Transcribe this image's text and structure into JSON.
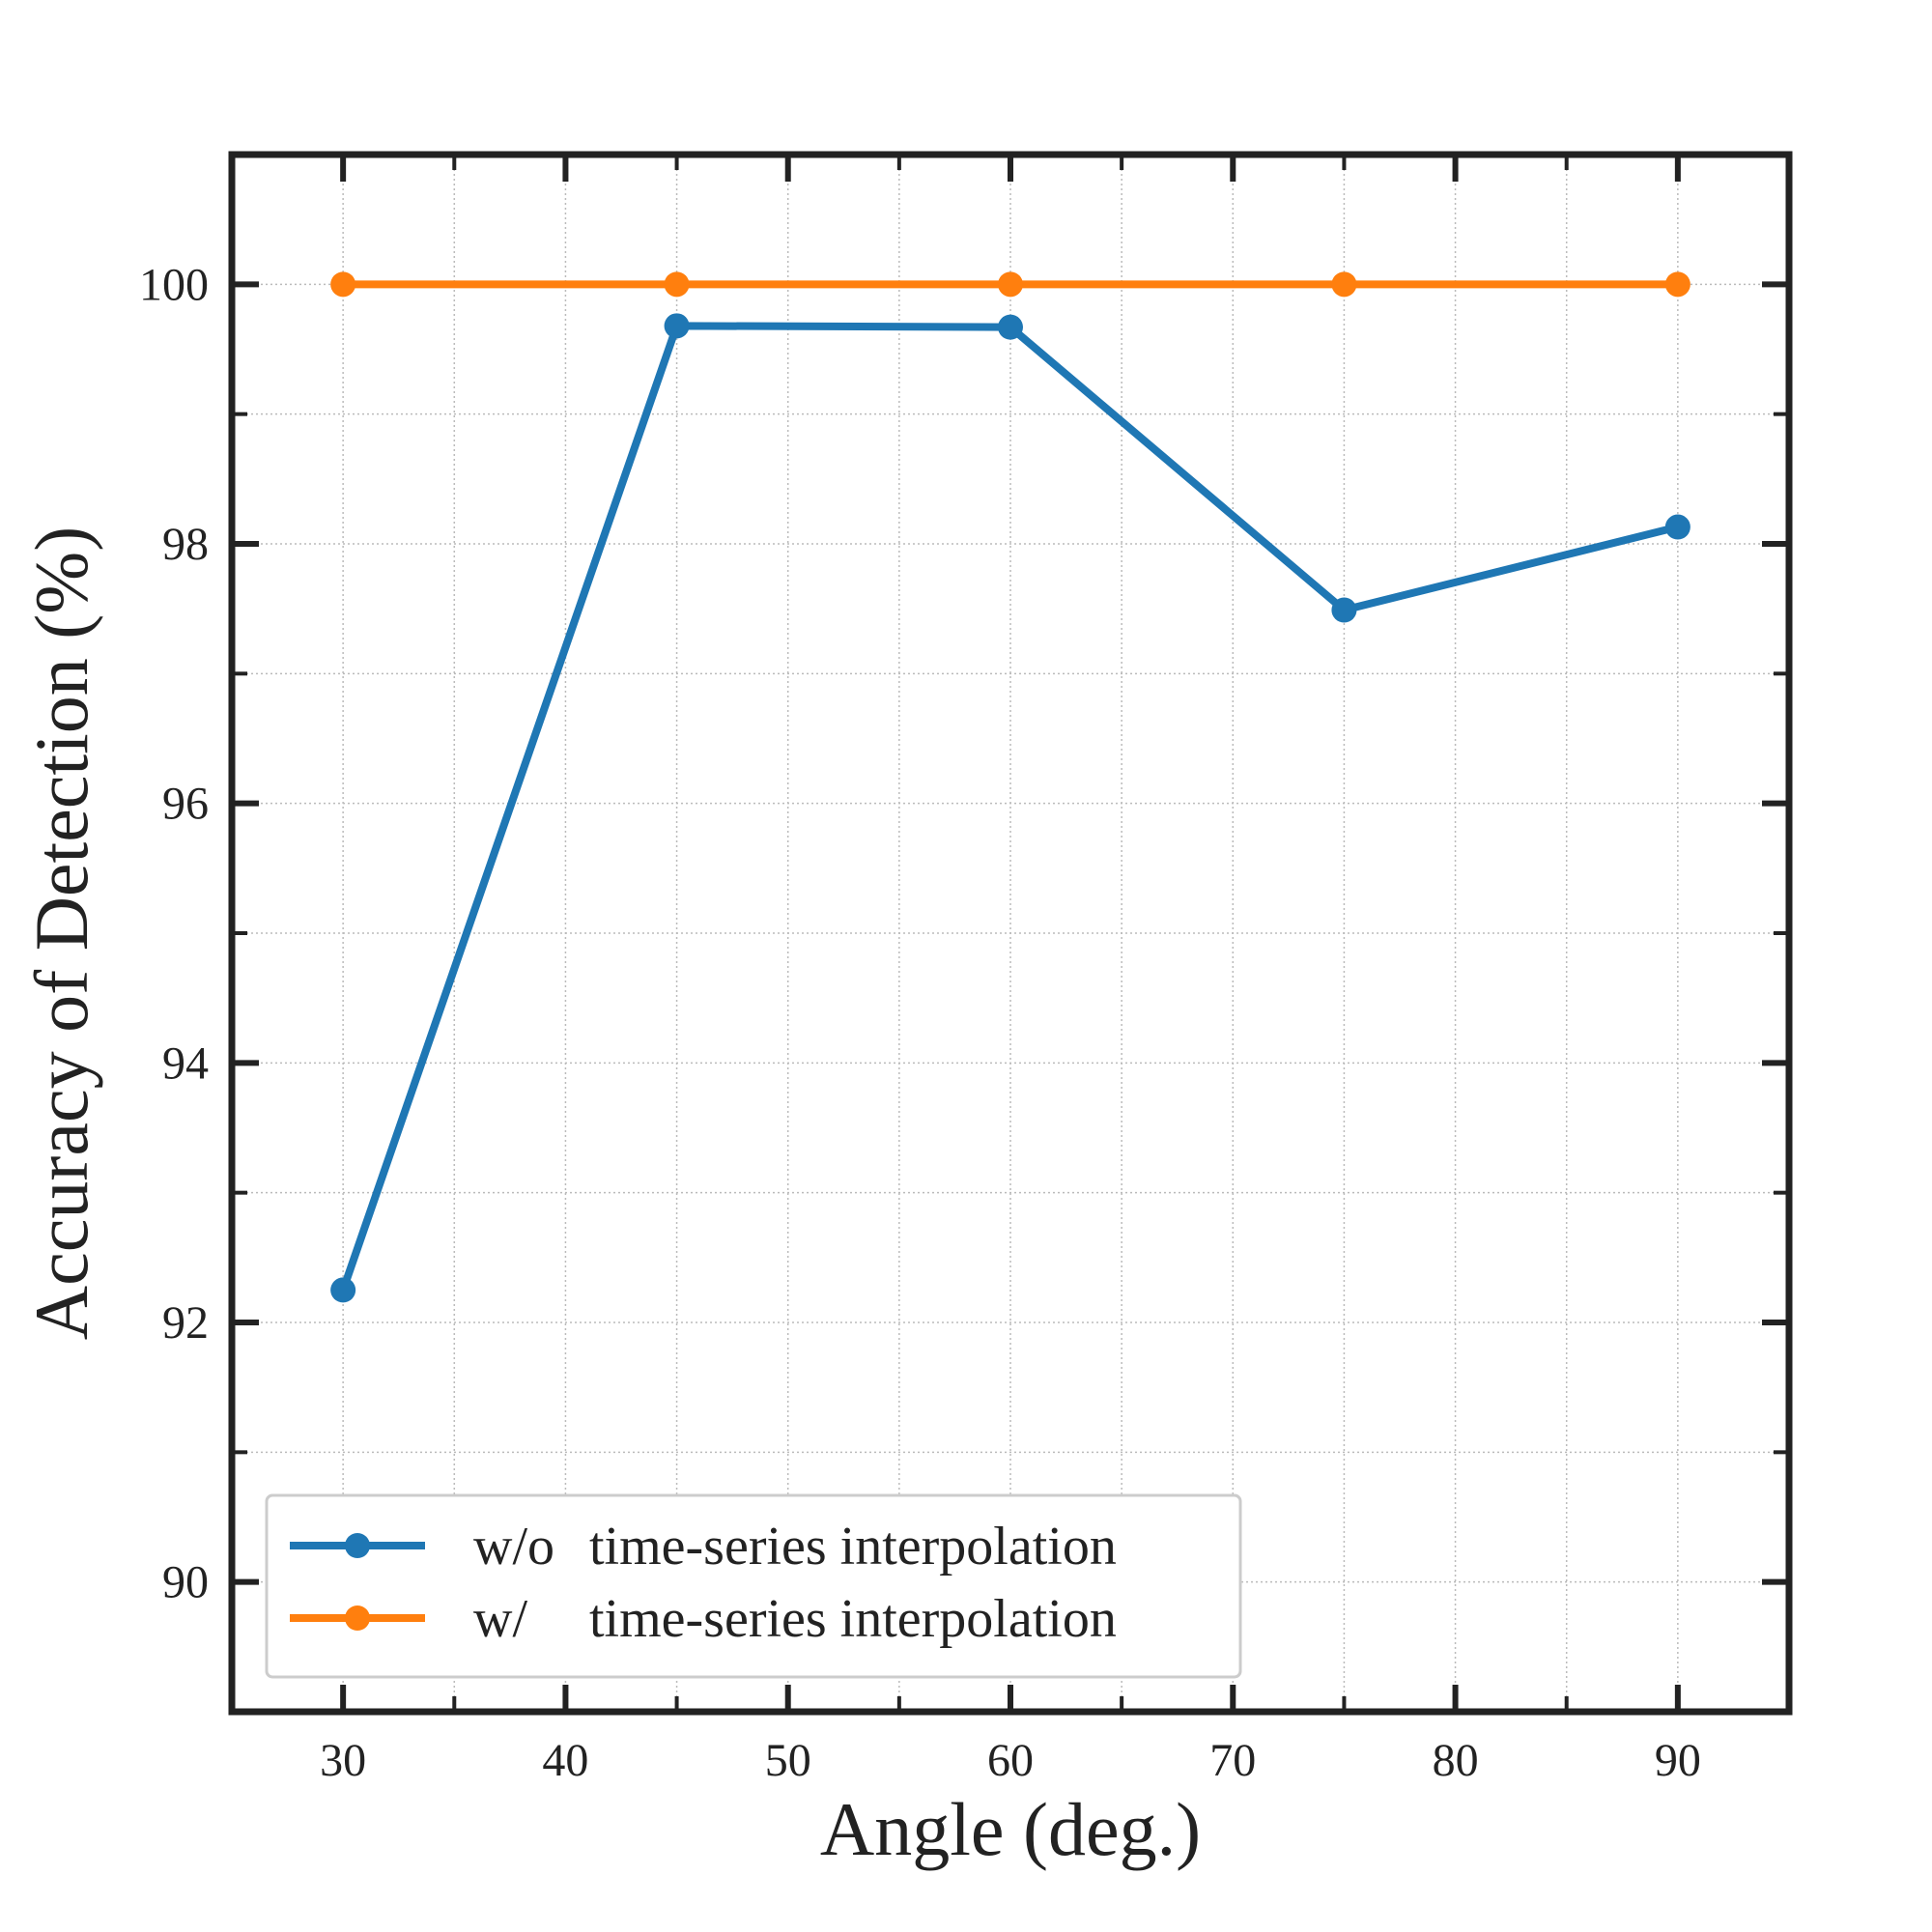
{
  "chart_data": {
    "type": "line",
    "x": [
      30,
      45,
      60,
      75,
      90
    ],
    "xlabel": "Angle (deg.)",
    "ylabel": "Accuracy of Detection (%)",
    "xlim": [
      25,
      95
    ],
    "ylim": [
      89,
      101
    ],
    "xticks": [
      30,
      40,
      50,
      60,
      70,
      80,
      90
    ],
    "yticks": [
      90,
      92,
      94,
      96,
      98,
      100
    ],
    "grid": true,
    "legend_position": "lower-left",
    "series": [
      {
        "name": "w/o time-series interpolation",
        "color": "#1f77b4",
        "values": [
          92.25,
          99.68,
          99.67,
          97.49,
          98.13
        ]
      },
      {
        "name": "w/ time-series interpolation",
        "color": "#ff7f0e",
        "values": [
          100.0,
          100.0,
          100.0,
          100.0,
          100.0
        ]
      }
    ]
  }
}
